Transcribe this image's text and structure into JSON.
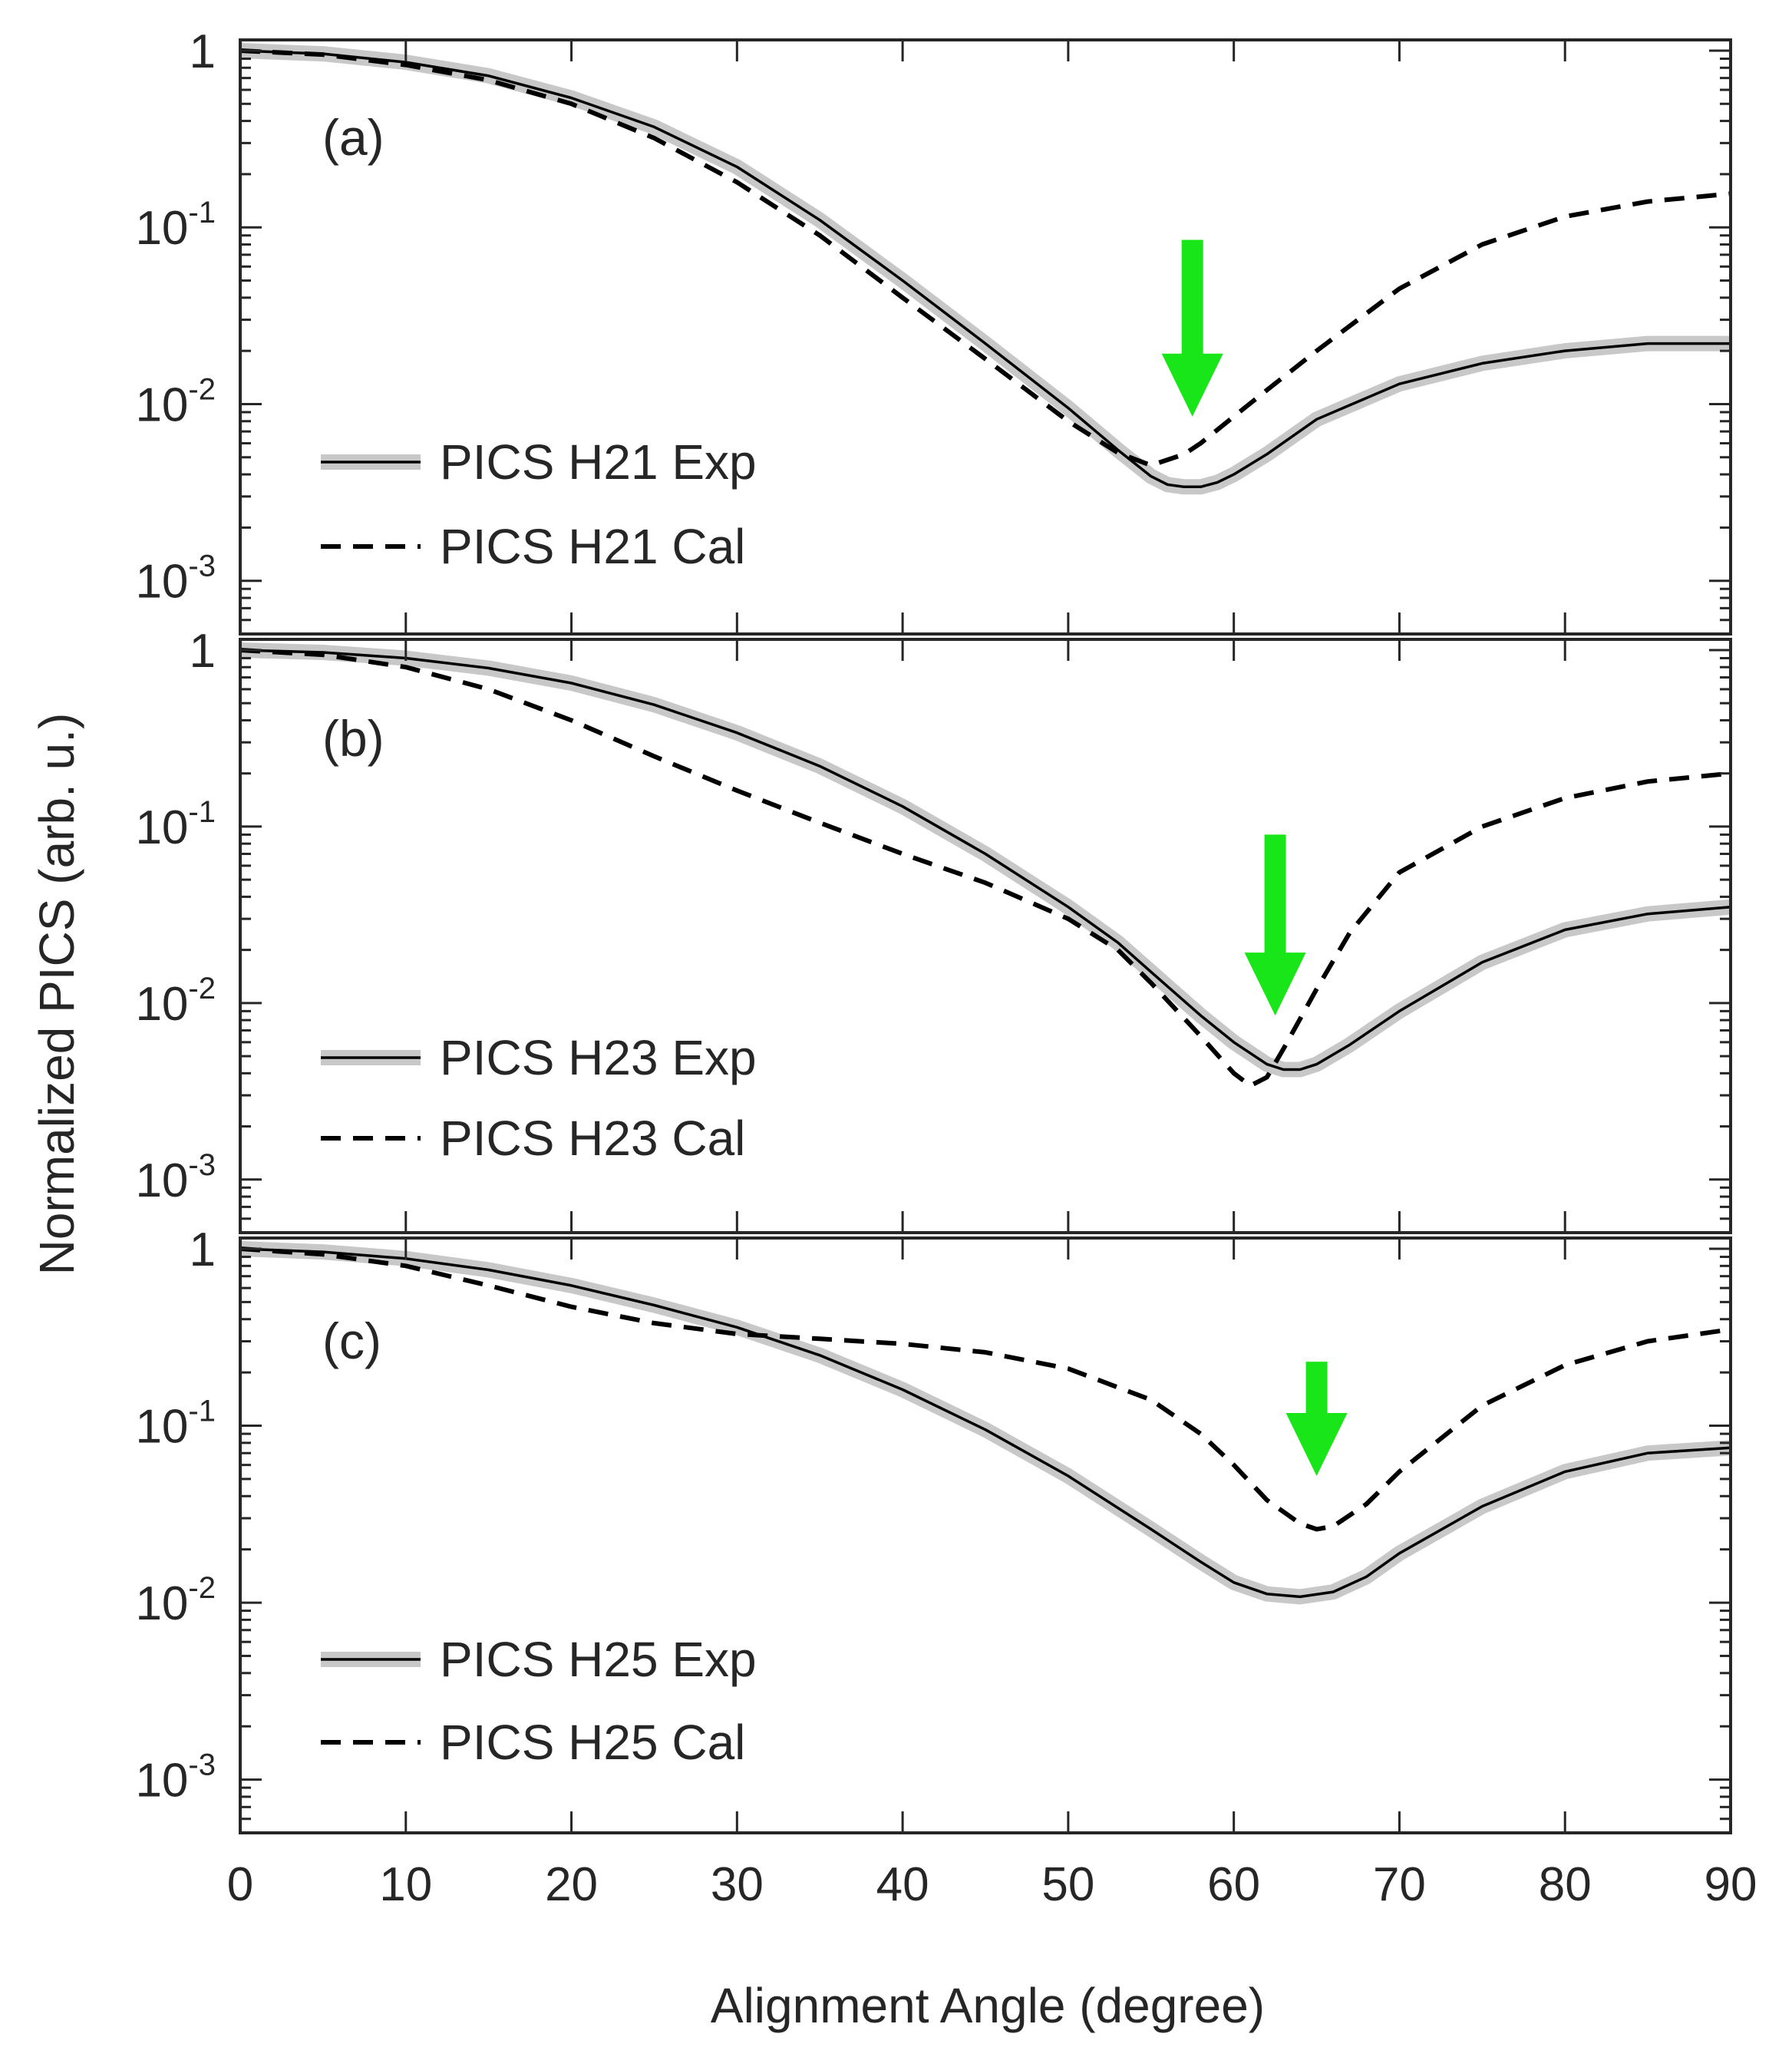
{
  "chart_data": {
    "type": "line",
    "xlabel": "Alignment Angle (degree)",
    "ylabel": "Normalized PICS (arb. u.)",
    "xlim": [
      0,
      90
    ],
    "x_ticks": [
      0,
      10,
      20,
      30,
      40,
      50,
      60,
      70,
      80,
      90
    ],
    "x_tick_labels": [
      "0",
      "10",
      "20",
      "30",
      "40",
      "50",
      "60",
      "70",
      "80",
      "90"
    ],
    "y_scale": "log",
    "ylim": [
      0.0005,
      1.15
    ],
    "y_ticks": [
      {
        "value": 1,
        "base": "1",
        "exp": ""
      },
      {
        "value": 0.1,
        "base": "10",
        "exp": "-1"
      },
      {
        "value": 0.01,
        "base": "10",
        "exp": "-2"
      },
      {
        "value": 0.001,
        "base": "10",
        "exp": "-3"
      }
    ],
    "colors": {
      "exp_band": "#c8c8c8",
      "exp_line": "#000000",
      "cal_line": "#000000",
      "arrow": "#19e619",
      "axis": "#262626"
    },
    "panels": [
      {
        "label": "(a)",
        "arrow_x": 57.5,
        "arrow_y_top": 0.085,
        "arrow_y_tip": 0.0085,
        "series": [
          {
            "name": "PICS H21 Exp",
            "style": "solid-band",
            "x": [
              0,
              5,
              10,
              15,
              20,
              25,
              30,
              35,
              40,
              45,
              50,
              53,
              55,
              56,
              57,
              58,
              59,
              60,
              62,
              65,
              70,
              75,
              80,
              85,
              90
            ],
            "y": [
              1,
              0.96,
              0.86,
              0.72,
              0.54,
              0.37,
              0.22,
              0.11,
              0.05,
              0.022,
              0.0095,
              0.0055,
              0.0039,
              0.0035,
              0.0034,
              0.0034,
              0.0036,
              0.004,
              0.0052,
              0.0082,
              0.013,
              0.017,
              0.02,
              0.022,
              0.022
            ]
          },
          {
            "name": "PICS H21 Cal",
            "style": "dashed",
            "x": [
              0,
              5,
              10,
              15,
              20,
              25,
              30,
              35,
              40,
              45,
              50,
              53,
              55,
              57,
              58,
              60,
              62,
              65,
              70,
              75,
              80,
              85,
              90
            ],
            "y": [
              1,
              0.95,
              0.83,
              0.68,
              0.5,
              0.32,
              0.18,
              0.09,
              0.04,
              0.018,
              0.008,
              0.0053,
              0.0045,
              0.0052,
              0.006,
              0.0085,
              0.012,
              0.02,
              0.045,
              0.08,
              0.115,
              0.14,
              0.155
            ]
          }
        ]
      },
      {
        "label": "(b)",
        "arrow_x": 62.5,
        "arrow_y_top": 0.09,
        "arrow_y_tip": 0.0085,
        "series": [
          {
            "name": "PICS H23 Exp",
            "style": "solid-band",
            "x": [
              0,
              5,
              10,
              15,
              20,
              25,
              30,
              35,
              40,
              45,
              50,
              53,
              55,
              58,
              60,
              62,
              63,
              64,
              65,
              67,
              70,
              75,
              80,
              85,
              90
            ],
            "y": [
              1,
              0.97,
              0.9,
              0.79,
              0.65,
              0.49,
              0.34,
              0.22,
              0.13,
              0.07,
              0.035,
              0.022,
              0.015,
              0.0085,
              0.006,
              0.0045,
              0.0042,
              0.0042,
              0.0045,
              0.0058,
              0.009,
              0.017,
              0.026,
              0.032,
              0.035
            ]
          },
          {
            "name": "PICS H23 Cal",
            "style": "dashed",
            "x": [
              0,
              5,
              10,
              15,
              20,
              25,
              30,
              35,
              40,
              45,
              50,
              53,
              55,
              58,
              60,
              61,
              62,
              63,
              65,
              67,
              70,
              75,
              80,
              85,
              90
            ],
            "y": [
              1,
              0.94,
              0.8,
              0.6,
              0.4,
              0.25,
              0.16,
              0.105,
              0.07,
              0.048,
              0.03,
              0.02,
              0.013,
              0.0065,
              0.004,
              0.0034,
              0.0038,
              0.0055,
              0.012,
              0.025,
              0.055,
              0.1,
              0.145,
              0.18,
              0.2
            ]
          }
        ]
      },
      {
        "label": "(c)",
        "arrow_x": 65,
        "arrow_y_top": 0.23,
        "arrow_y_tip": 0.052,
        "series": [
          {
            "name": "PICS H25 Exp",
            "style": "solid-band",
            "x": [
              0,
              5,
              10,
              15,
              20,
              25,
              30,
              35,
              40,
              45,
              50,
              55,
              58,
              60,
              62,
              64,
              66,
              68,
              70,
              75,
              80,
              85,
              90
            ],
            "y": [
              1,
              0.96,
              0.88,
              0.76,
              0.62,
              0.48,
              0.36,
              0.25,
              0.16,
              0.095,
              0.052,
              0.026,
              0.017,
              0.013,
              0.0112,
              0.0108,
              0.0115,
              0.014,
              0.019,
              0.035,
              0.055,
              0.07,
              0.075
            ]
          },
          {
            "name": "PICS H25 Cal",
            "style": "dashed",
            "x": [
              0,
              5,
              10,
              15,
              20,
              25,
              30,
              35,
              40,
              45,
              50,
              55,
              58,
              60,
              62,
              64,
              65,
              66,
              68,
              70,
              75,
              80,
              85,
              90
            ],
            "y": [
              1,
              0.93,
              0.8,
              0.62,
              0.47,
              0.38,
              0.33,
              0.31,
              0.29,
              0.26,
              0.21,
              0.14,
              0.09,
              0.06,
              0.038,
              0.028,
              0.026,
              0.027,
              0.036,
              0.055,
              0.13,
              0.22,
              0.3,
              0.35
            ]
          }
        ]
      }
    ]
  }
}
